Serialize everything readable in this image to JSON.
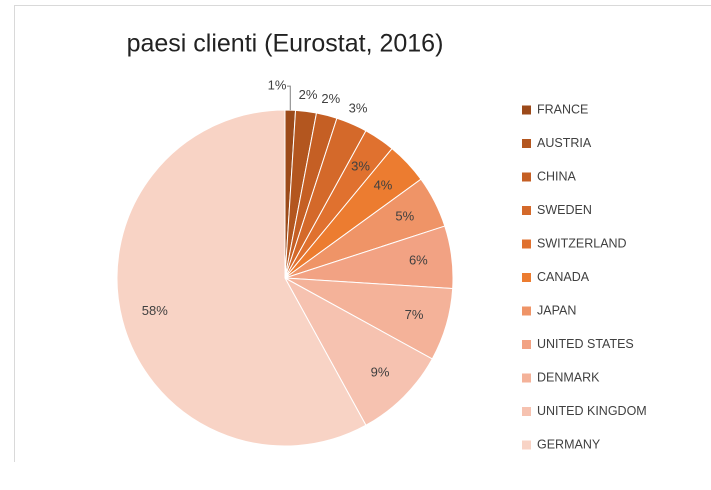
{
  "chart_data": {
    "type": "pie",
    "title": "paesi clienti (Eurostat, 2016)",
    "categories": [
      "FRANCE",
      "AUSTRIA",
      "CHINA",
      "SWEDEN",
      "SWITZERLAND",
      "CANADA",
      "JAPAN",
      "UNITED STATES",
      "DENMARK",
      "UNITED KINGDOM",
      "GERMANY"
    ],
    "values": [
      1,
      2,
      2,
      3,
      3,
      4,
      5,
      6,
      7,
      9,
      58
    ],
    "value_labels": [
      "1%",
      "2%",
      "2%",
      "3%",
      "3%",
      "4%",
      "5%",
      "6%",
      "7%",
      "9%",
      "58%"
    ],
    "colors": [
      "#9c4a1a",
      "#b3561f",
      "#c55f24",
      "#d4692a",
      "#e0712f",
      "#ec7c30",
      "#ef9467",
      "#f2a283",
      "#f4b299",
      "#f6c2b0",
      "#f8d3c5"
    ],
    "legend": "right"
  }
}
